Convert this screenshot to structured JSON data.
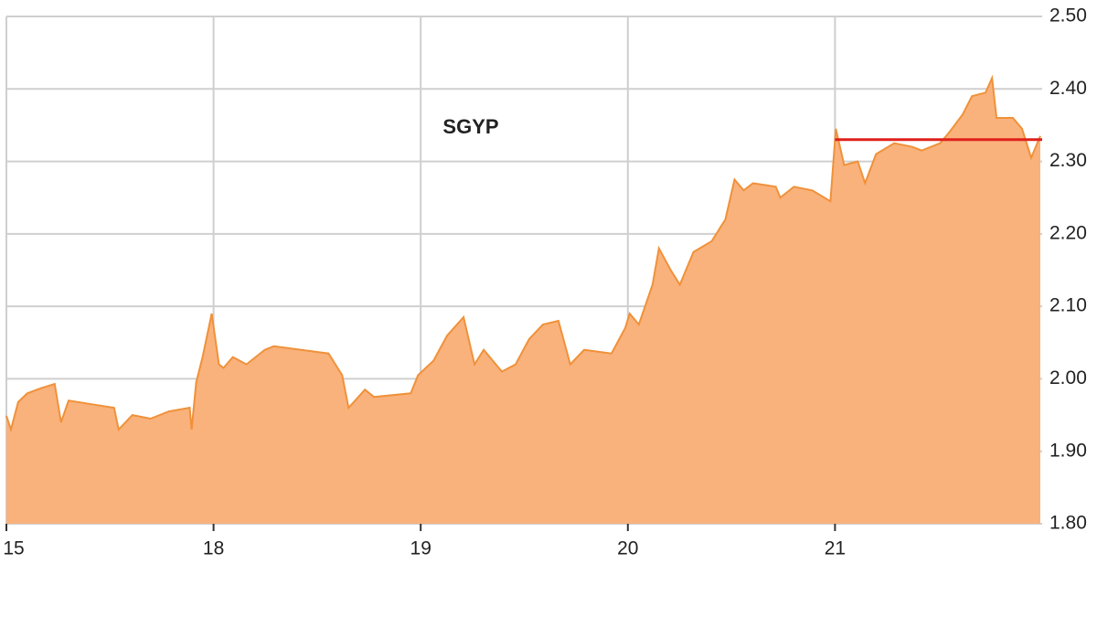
{
  "chart_data": {
    "type": "area",
    "title": "SGYP",
    "x": [
      0,
      0.022,
      0.057,
      0.101,
      0.167,
      0.233,
      0.264,
      0.3,
      0.41,
      0.52,
      0.542,
      0.608,
      0.696,
      0.784,
      0.885,
      0.894,
      0.916,
      0.947,
      0.991,
      1.026,
      1.048,
      1.093,
      1.159,
      1.247,
      1.291,
      1.423,
      1.555,
      1.621,
      1.652,
      1.731,
      1.775,
      1.952,
      1.987,
      2.062,
      2.128,
      2.207,
      2.26,
      2.304,
      2.392,
      2.458,
      2.524,
      2.59,
      2.665,
      2.722,
      2.789,
      2.921,
      2.987,
      3.009,
      3.053,
      3.119,
      3.15,
      3.207,
      3.251,
      3.317,
      3.405,
      3.471,
      3.515,
      3.559,
      3.604,
      3.714,
      3.736,
      3.802,
      3.89,
      3.978,
      4.004,
      4.044,
      4.11,
      4.145,
      4.198,
      4.286,
      4.374,
      4.419,
      4.507,
      4.551,
      4.617,
      4.661,
      4.727,
      4.758,
      4.78,
      4.859,
      4.903,
      4.947,
      4.991
    ],
    "values": [
      1.949,
      1.93,
      1.968,
      1.98,
      1.987,
      1.993,
      1.94,
      1.97,
      1.965,
      1.96,
      1.93,
      1.95,
      1.945,
      1.955,
      1.96,
      1.93,
      1.995,
      2.03,
      2.09,
      2.02,
      2.015,
      2.03,
      2.02,
      2.04,
      2.045,
      2.04,
      2.035,
      2.005,
      1.96,
      1.985,
      1.975,
      1.98,
      2.005,
      2.025,
      2.06,
      2.085,
      2.02,
      2.04,
      2.01,
      2.02,
      2.055,
      2.075,
      2.08,
      2.02,
      2.04,
      2.035,
      2.07,
      2.09,
      2.075,
      2.13,
      2.18,
      2.15,
      2.13,
      2.175,
      2.19,
      2.22,
      2.275,
      2.26,
      2.27,
      2.265,
      2.25,
      2.265,
      2.26,
      2.245,
      2.345,
      2.295,
      2.3,
      2.27,
      2.31,
      2.325,
      2.32,
      2.315,
      2.325,
      2.34,
      2.365,
      2.39,
      2.395,
      2.415,
      2.36,
      2.36,
      2.345,
      2.305,
      2.335
    ],
    "color": "#f0913a",
    "fill_color": "#f9b27c",
    "xlim": [
      0,
      5
    ],
    "xticks": [
      {
        "value": 0,
        "label": "15"
      },
      {
        "value": 1,
        "label": "18"
      },
      {
        "value": 2,
        "label": "19"
      },
      {
        "value": 3,
        "label": "20"
      },
      {
        "value": 4,
        "label": "21"
      }
    ],
    "ylim": [
      1.8,
      2.5
    ],
    "yticks": [
      {
        "value": 1.8,
        "label": "1.80"
      },
      {
        "value": 1.9,
        "label": "1.90"
      },
      {
        "value": 2.0,
        "label": "2.00"
      },
      {
        "value": 2.1,
        "label": "2.10"
      },
      {
        "value": 2.2,
        "label": "2.20"
      },
      {
        "value": 2.3,
        "label": "2.30"
      },
      {
        "value": 2.4,
        "label": "2.40"
      },
      {
        "value": 2.5,
        "label": "2.50"
      }
    ],
    "grid": true,
    "reference_line": {
      "value": 2.33,
      "start": 4,
      "color": "#e0201b"
    }
  }
}
